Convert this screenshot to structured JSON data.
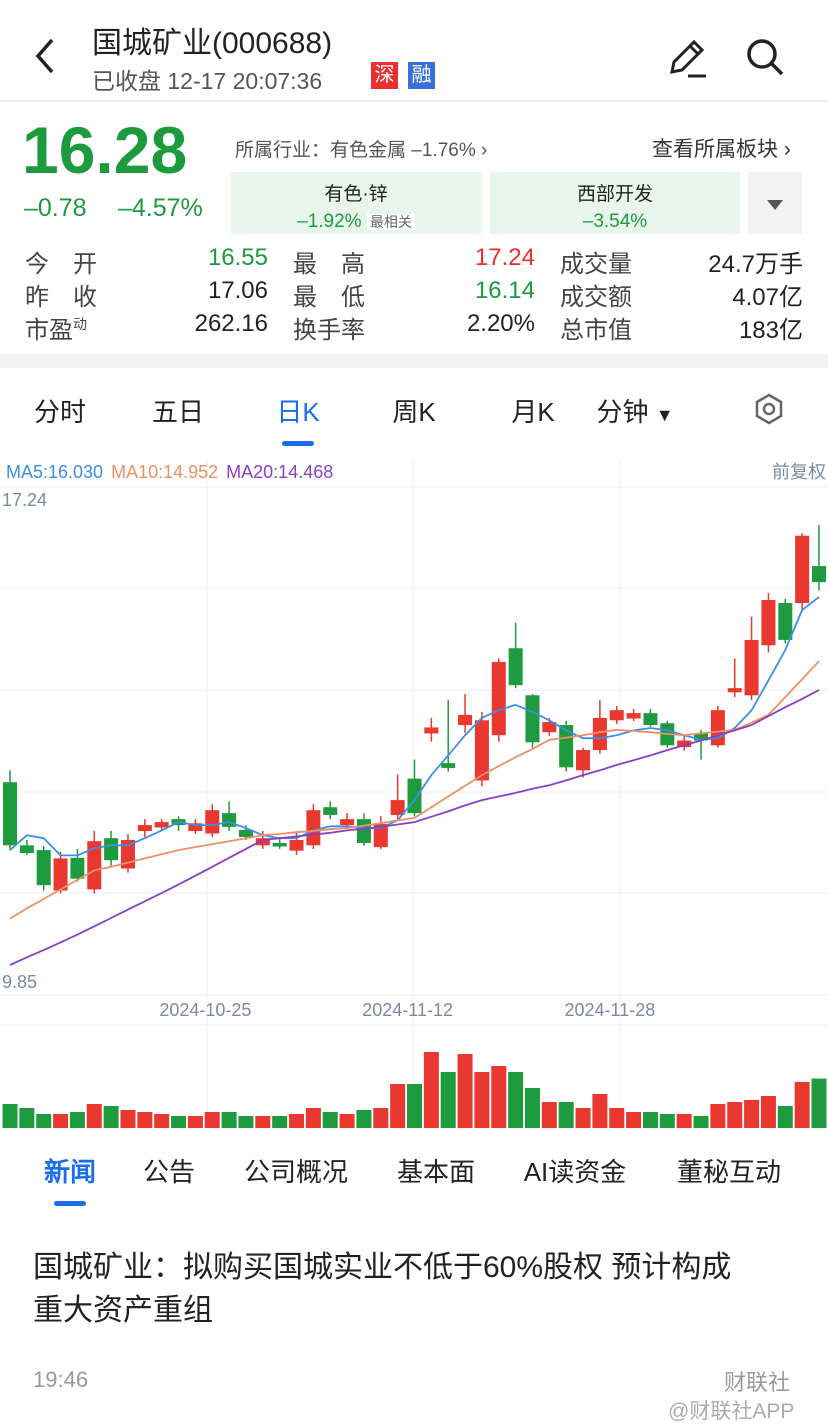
{
  "header": {
    "title": "国城矿业(000688)",
    "status": "已收盘 12-17 20:07:36",
    "badges": [
      "深",
      "融"
    ]
  },
  "quote": {
    "price": "16.28",
    "change": "–0.78",
    "change_pct": "–4.57%",
    "color": "#1e9a3e"
  },
  "industry": {
    "text": "所属行业：有色金属 –1.76%",
    "link": "查看所属板块"
  },
  "sectors": [
    {
      "name": "有色·锌",
      "change": "–1.92%",
      "tag": "最相关"
    },
    {
      "name": "西部开发",
      "change": "–3.54%"
    }
  ],
  "stats": [
    [
      {
        "label": "今　开",
        "value": "16.55",
        "color": "#1e9a3e"
      },
      {
        "label": "最　高",
        "value": "17.24",
        "color": "#e8312f"
      },
      {
        "label": "成交量",
        "value": "24.7万手",
        "color": "#222"
      }
    ],
    [
      {
        "label": "昨　收",
        "value": "17.06",
        "color": "#222"
      },
      {
        "label": "最　低",
        "value": "16.14",
        "color": "#1e9a3e"
      },
      {
        "label": "成交额",
        "value": "4.07亿",
        "color": "#222"
      }
    ],
    [
      {
        "label": "市盈",
        "sup": "动",
        "value": "262.16",
        "color": "#222"
      },
      {
        "label": "换手率",
        "value": "2.20%",
        "color": "#222"
      },
      {
        "label": "总市值",
        "value": "183亿",
        "color": "#222"
      }
    ]
  ],
  "chart_tabs": {
    "items": [
      "分时",
      "五日",
      "日K",
      "周K",
      "月K",
      "分钟"
    ],
    "active": 2
  },
  "chart": {
    "type": "candlestick",
    "adjust": "前复权",
    "up_color": "#e8382f",
    "down_color": "#1f9b3f",
    "ylim": [
      9.85,
      17.24
    ],
    "yticks": [
      17.24,
      9.85
    ],
    "xticks": [
      {
        "value": 11,
        "label": "2024-10-25"
      },
      {
        "value": 23,
        "label": "2024-11-12"
      },
      {
        "value": 35,
        "label": "2024-11-28"
      }
    ],
    "candles": [
      {
        "open": 12.92,
        "close": 11.86,
        "high": 13.12,
        "low": 11.78
      },
      {
        "open": 11.86,
        "close": 11.73,
        "high": 11.95,
        "low": 11.7
      },
      {
        "open": 11.78,
        "close": 11.19,
        "high": 11.85,
        "low": 11.1
      },
      {
        "open": 11.1,
        "close": 11.64,
        "high": 11.75,
        "low": 11.05
      },
      {
        "open": 11.65,
        "close": 11.3,
        "high": 11.8,
        "low": 11.25
      },
      {
        "open": 11.12,
        "close": 11.93,
        "high": 12.1,
        "low": 11.05
      },
      {
        "open": 11.98,
        "close": 11.61,
        "high": 12.1,
        "low": 11.5
      },
      {
        "open": 11.47,
        "close": 11.95,
        "high": 12.05,
        "low": 11.4
      },
      {
        "open": 12.1,
        "close": 12.2,
        "high": 12.3,
        "low": 12.0
      },
      {
        "open": 12.16,
        "close": 12.25,
        "high": 12.3,
        "low": 12.1
      },
      {
        "open": 12.3,
        "close": 12.2,
        "high": 12.35,
        "low": 12.1
      },
      {
        "open": 12.1,
        "close": 12.23,
        "high": 12.3,
        "low": 12.05
      },
      {
        "open": 12.06,
        "close": 12.45,
        "high": 12.55,
        "low": 12.0
      },
      {
        "open": 12.4,
        "close": 12.17,
        "high": 12.6,
        "low": 12.1
      },
      {
        "open": 12.12,
        "close": 12.0,
        "high": 12.2,
        "low": 11.95
      },
      {
        "open": 11.86,
        "close": 11.98,
        "high": 12.1,
        "low": 11.8
      },
      {
        "open": 11.9,
        "close": 11.84,
        "high": 12.0,
        "low": 11.8
      },
      {
        "open": 11.77,
        "close": 11.95,
        "high": 12.1,
        "low": 11.7
      },
      {
        "open": 11.86,
        "close": 12.45,
        "high": 12.55,
        "low": 11.8
      },
      {
        "open": 12.5,
        "close": 12.37,
        "high": 12.6,
        "low": 12.3
      },
      {
        "open": 12.2,
        "close": 12.3,
        "high": 12.4,
        "low": 12.15
      },
      {
        "open": 12.3,
        "close": 11.9,
        "high": 12.4,
        "low": 11.85
      },
      {
        "open": 11.83,
        "close": 12.22,
        "high": 12.35,
        "low": 11.8
      },
      {
        "open": 12.37,
        "close": 12.62,
        "high": 13.05,
        "low": 12.3
      },
      {
        "open": 12.98,
        "close": 12.4,
        "high": 13.3,
        "low": 12.35
      },
      {
        "open": 13.74,
        "close": 13.84,
        "high": 14.0,
        "low": 13.6
      },
      {
        "open": 13.24,
        "close": 13.16,
        "high": 14.3,
        "low": 13.1
      },
      {
        "open": 13.88,
        "close": 14.05,
        "high": 14.4,
        "low": 13.75
      },
      {
        "open": 12.95,
        "close": 13.96,
        "high": 14.1,
        "low": 12.85
      },
      {
        "open": 13.71,
        "close": 14.94,
        "high": 15.0,
        "low": 13.6
      },
      {
        "open": 15.17,
        "close": 14.55,
        "high": 15.6,
        "low": 14.5
      },
      {
        "open": 14.38,
        "close": 13.59,
        "high": 14.4,
        "low": 13.5
      },
      {
        "open": 13.76,
        "close": 13.93,
        "high": 14.0,
        "low": 13.7
      },
      {
        "open": 13.88,
        "close": 13.17,
        "high": 13.95,
        "low": 13.1
      },
      {
        "open": 13.12,
        "close": 13.46,
        "high": 13.5,
        "low": 13.0
      },
      {
        "open": 13.46,
        "close": 14.0,
        "high": 14.3,
        "low": 13.4
      },
      {
        "open": 13.96,
        "close": 14.13,
        "high": 14.2,
        "low": 13.9
      },
      {
        "open": 13.99,
        "close": 14.08,
        "high": 14.15,
        "low": 13.95
      },
      {
        "open": 14.08,
        "close": 13.88,
        "high": 14.15,
        "low": 13.85
      },
      {
        "open": 13.91,
        "close": 13.54,
        "high": 13.95,
        "low": 13.5
      },
      {
        "open": 13.51,
        "close": 13.62,
        "high": 13.7,
        "low": 13.45
      },
      {
        "open": 13.74,
        "close": 13.62,
        "high": 13.8,
        "low": 13.3
      },
      {
        "open": 13.54,
        "close": 14.13,
        "high": 14.2,
        "low": 13.5
      },
      {
        "open": 14.43,
        "close": 14.5,
        "high": 15.0,
        "low": 14.35
      },
      {
        "open": 14.38,
        "close": 15.31,
        "high": 15.7,
        "low": 14.3
      },
      {
        "open": 15.22,
        "close": 15.98,
        "high": 16.1,
        "low": 15.1
      },
      {
        "open": 15.93,
        "close": 15.31,
        "high": 16.0,
        "low": 15.25
      },
      {
        "open": 15.93,
        "close": 17.06,
        "high": 17.1,
        "low": 15.8
      },
      {
        "open": 16.55,
        "close": 16.28,
        "high": 17.24,
        "low": 16.14
      }
    ],
    "ma": [
      {
        "label": "MA5:16.030",
        "color": "#3d8fe6",
        "values": [
          11.78,
          12.03,
          11.98,
          11.69,
          11.69,
          11.81,
          11.86,
          11.86,
          11.98,
          12.11,
          12.25,
          12.2,
          12.2,
          12.25,
          12.15,
          12.03,
          11.98,
          11.98,
          12.11,
          12.18,
          12.18,
          12.15,
          12.15,
          12.28,
          12.62,
          13.04,
          13.37,
          13.71,
          14.0,
          14.13,
          14.22,
          14.1,
          13.96,
          13.79,
          13.66,
          13.66,
          13.71,
          13.79,
          13.83,
          13.79,
          13.71,
          13.63,
          13.66,
          13.83,
          14.13,
          14.63,
          15.14,
          15.81,
          16.03
        ]
      },
      {
        "label": "MA10:14.952",
        "color": "#ec9067",
        "values": [
          10.63,
          10.8,
          10.96,
          11.12,
          11.28,
          11.44,
          11.5,
          11.57,
          11.64,
          11.71,
          11.78,
          11.83,
          11.88,
          11.93,
          11.98,
          12.03,
          12.05,
          12.08,
          12.1,
          12.13,
          12.15,
          12.19,
          12.23,
          12.28,
          12.32,
          12.5,
          12.68,
          12.86,
          13.04,
          13.19,
          13.34,
          13.48,
          13.63,
          13.67,
          13.71,
          13.76,
          13.8,
          13.78,
          13.76,
          13.73,
          13.71,
          13.74,
          13.77,
          13.8,
          13.92,
          14.05,
          14.35,
          14.65,
          14.952
        ]
      },
      {
        "label": "MA20:14.468",
        "color": "#8a3fc4",
        "values": [
          9.85,
          9.98,
          10.1,
          10.23,
          10.36,
          10.5,
          10.64,
          10.78,
          10.92,
          11.06,
          11.2,
          11.35,
          11.5,
          11.65,
          11.8,
          11.95,
          11.98,
          12.01,
          12.04,
          12.07,
          12.11,
          12.14,
          12.17,
          12.21,
          12.25,
          12.34,
          12.43,
          12.53,
          12.62,
          12.68,
          12.74,
          12.81,
          12.87,
          12.95,
          13.04,
          13.12,
          13.21,
          13.29,
          13.37,
          13.46,
          13.54,
          13.62,
          13.71,
          13.79,
          13.88,
          14.03,
          14.18,
          14.32,
          14.468
        ]
      }
    ],
    "volume": {
      "vlim": [
        0,
        40
      ],
      "values": [
        12,
        10,
        7,
        7,
        8,
        12,
        11,
        9,
        8,
        7,
        6,
        6,
        8,
        8,
        6,
        6,
        6,
        7,
        10,
        8,
        7,
        9,
        10,
        22,
        22,
        38,
        28,
        37,
        28,
        31,
        28,
        20,
        13,
        13,
        10,
        17,
        10,
        8,
        8,
        7,
        7,
        6,
        12,
        13,
        14,
        16,
        11,
        23,
        24.7
      ]
    }
  },
  "news_tabs": {
    "items": [
      "新闻",
      "公告",
      "公司概况",
      "基本面",
      "AI读资金",
      "董秘互动"
    ],
    "active": 0
  },
  "article": {
    "title_lines": [
      "国城矿业：拟购买国城实业不低于60%股权 预计构成",
      "重大资产重组"
    ],
    "time": "19:46",
    "source": "财联社"
  },
  "watermark": "@财联社APP"
}
